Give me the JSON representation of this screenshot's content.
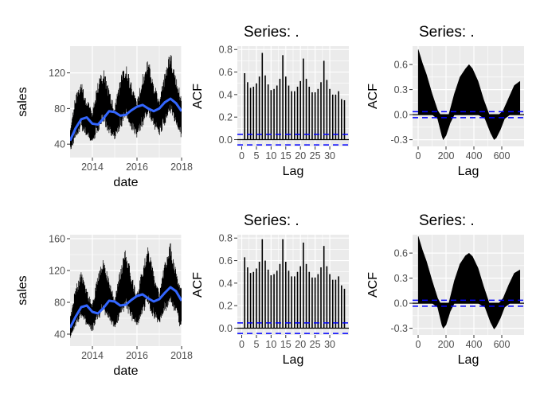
{
  "colors": {
    "panel_bg": "#EBEBEB",
    "grid_major": "#FFFFFF",
    "series_line": "#000000",
    "smooth_line": "#3366FF",
    "ci_line": "#0000FF",
    "tick_text": "#4D4D4D"
  },
  "chart_data": [
    {
      "type": "line",
      "title": "",
      "xlabel": "date",
      "ylabel": "sales",
      "xlim": [
        2013.0,
        2018.0
      ],
      "ylim": [
        25,
        150
      ],
      "xticks": [
        2014,
        2016,
        2018
      ],
      "xtick_labels": [
        "2014",
        "2016",
        "2018"
      ],
      "yticks": [
        40,
        80,
        120
      ],
      "ytick_labels": [
        "40",
        "80",
        "120"
      ],
      "series": [
        {
          "kind": "daily",
          "x": [
            2013.0,
            2013.25,
            2013.5,
            2013.75,
            2014.0,
            2014.25,
            2014.5,
            2014.75,
            2015.0,
            2015.25,
            2015.5,
            2015.75,
            2016.0,
            2016.25,
            2016.5,
            2016.75,
            2017.0,
            2017.25,
            2017.5,
            2017.75,
            2018.0
          ],
          "low": [
            30,
            45,
            55,
            45,
            40,
            52,
            62,
            50,
            42,
            55,
            66,
            54,
            46,
            58,
            70,
            56,
            48,
            60,
            72,
            58,
            45
          ],
          "high": [
            60,
            95,
            110,
            90,
            78,
            110,
            125,
            100,
            82,
            115,
            130,
            108,
            88,
            118,
            137,
            110,
            90,
            120,
            145,
            115,
            95
          ]
        },
        {
          "kind": "smooth",
          "x": [
            2013.0,
            2013.25,
            2013.5,
            2013.75,
            2014.0,
            2014.25,
            2014.5,
            2014.75,
            2015.0,
            2015.25,
            2015.5,
            2015.75,
            2016.0,
            2016.25,
            2016.5,
            2016.75,
            2017.0,
            2017.25,
            2017.5,
            2017.75,
            2018.0
          ],
          "y": [
            44,
            58,
            68,
            70,
            63,
            62,
            69,
            77,
            76,
            72,
            73,
            78,
            82,
            84,
            80,
            77,
            80,
            87,
            91,
            86,
            77
          ]
        }
      ]
    },
    {
      "type": "bar",
      "title": "Series: .",
      "xlabel": "Lag",
      "ylabel": "ACF",
      "xlim": [
        -1.5,
        36.5
      ],
      "ylim": [
        -0.06,
        0.83
      ],
      "xticks": [
        0,
        5,
        10,
        15,
        20,
        25,
        30
      ],
      "xtick_labels": [
        "0",
        "5",
        "10",
        "15",
        "20",
        "25",
        "30"
      ],
      "yticks": [
        0.0,
        0.2,
        0.4,
        0.6,
        0.8
      ],
      "ytick_labels": [
        "0.0",
        "0.2",
        "0.4",
        "0.6",
        "0.8"
      ],
      "x": [
        1,
        2,
        3,
        4,
        5,
        6,
        7,
        8,
        9,
        10,
        11,
        12,
        13,
        14,
        15,
        16,
        17,
        18,
        19,
        20,
        21,
        22,
        23,
        24,
        25,
        26,
        27,
        28,
        29,
        30,
        31,
        32,
        33,
        34,
        35
      ],
      "values": [
        0.59,
        0.51,
        0.46,
        0.47,
        0.5,
        0.56,
        0.77,
        0.57,
        0.49,
        0.44,
        0.45,
        0.48,
        0.54,
        0.75,
        0.56,
        0.48,
        0.43,
        0.43,
        0.47,
        0.52,
        0.72,
        0.54,
        0.47,
        0.42,
        0.42,
        0.45,
        0.51,
        0.7,
        0.53,
        0.45,
        0.4,
        0.4,
        0.43,
        0.36,
        0.35
      ],
      "ci": [
        0.047,
        -0.047
      ]
    },
    {
      "type": "bar",
      "title": "Series: .",
      "xlabel": "Lag",
      "ylabel": "ACF",
      "xlim": [
        -40,
        760
      ],
      "ylim": [
        -0.38,
        0.82
      ],
      "xticks": [
        0,
        200,
        400,
        600
      ],
      "xtick_labels": [
        "0",
        "200",
        "400",
        "600"
      ],
      "yticks": [
        -0.3,
        0.0,
        0.3,
        0.6
      ],
      "ytick_labels": [
        "-0.3",
        "0.0",
        "0.3",
        "0.6"
      ],
      "lag_max": 730,
      "envelope": {
        "upper_x": [
          1,
          30,
          60,
          100,
          140,
          160,
          190,
          220,
          260,
          300,
          340,
          365,
          390,
          430,
          470,
          510,
          545,
          580,
          610,
          650,
          690,
          730
        ],
        "upper_y": [
          0.78,
          0.62,
          0.48,
          0.25,
          0.05,
          0.0,
          0.0,
          0.0,
          0.25,
          0.45,
          0.55,
          0.6,
          0.55,
          0.4,
          0.18,
          0.0,
          0.0,
          0.0,
          0.05,
          0.2,
          0.35,
          0.4
        ],
        "lower_x": [
          1,
          30,
          60,
          100,
          140,
          170,
          180,
          200,
          230,
          260,
          300,
          365,
          430,
          480,
          520,
          545,
          560,
          590,
          620,
          660,
          700,
          730
        ],
        "lower_y": [
          0.0,
          0.0,
          0.0,
          0.0,
          -0.05,
          -0.25,
          -0.3,
          -0.25,
          -0.1,
          0.0,
          0.0,
          0.0,
          0.0,
          -0.05,
          -0.22,
          -0.3,
          -0.28,
          -0.18,
          -0.05,
          0.0,
          0.0,
          0.0
        ]
      },
      "ci": [
        0.036,
        -0.036
      ]
    },
    {
      "type": "line",
      "title": "",
      "xlabel": "date",
      "ylabel": "sales",
      "xlim": [
        2013.0,
        2018.0
      ],
      "ylim": [
        25,
        165
      ],
      "xticks": [
        2014,
        2016,
        2018
      ],
      "xtick_labels": [
        "2014",
        "2016",
        "2018"
      ],
      "yticks": [
        40,
        80,
        120,
        160
      ],
      "ytick_labels": [
        "40",
        "80",
        "120",
        "160"
      ],
      "series": [
        {
          "kind": "daily",
          "x": [
            2013.0,
            2013.25,
            2013.5,
            2013.75,
            2014.0,
            2014.25,
            2014.5,
            2014.75,
            2015.0,
            2015.25,
            2015.5,
            2015.75,
            2016.0,
            2016.25,
            2016.5,
            2016.75,
            2017.0,
            2017.25,
            2017.5,
            2017.75,
            2018.0
          ],
          "low": [
            32,
            48,
            58,
            48,
            42,
            55,
            65,
            52,
            44,
            58,
            70,
            56,
            48,
            62,
            74,
            58,
            50,
            64,
            76,
            60,
            42
          ],
          "high": [
            62,
            100,
            118,
            95,
            80,
            115,
            135,
            108,
            85,
            122,
            148,
            115,
            90,
            125,
            150,
            118,
            95,
            130,
            155,
            120,
            100
          ]
        },
        {
          "kind": "smooth",
          "x": [
            2013.0,
            2013.25,
            2013.5,
            2013.75,
            2014.0,
            2014.25,
            2014.5,
            2014.75,
            2015.0,
            2015.25,
            2015.5,
            2015.75,
            2016.0,
            2016.25,
            2016.5,
            2016.75,
            2017.0,
            2017.25,
            2017.5,
            2017.75,
            2018.0
          ],
          "y": [
            48,
            62,
            74,
            76,
            68,
            66,
            73,
            82,
            81,
            76,
            77,
            83,
            88,
            90,
            85,
            81,
            84,
            92,
            99,
            94,
            82
          ]
        }
      ]
    },
    {
      "type": "bar",
      "title": "Series: .",
      "xlabel": "Lag",
      "ylabel": "ACF",
      "xlim": [
        -1.5,
        36.5
      ],
      "ylim": [
        -0.06,
        0.83
      ],
      "xticks": [
        0,
        5,
        10,
        15,
        20,
        25,
        30
      ],
      "xtick_labels": [
        "0",
        "5",
        "10",
        "15",
        "20",
        "25",
        "30"
      ],
      "yticks": [
        0.0,
        0.2,
        0.4,
        0.6,
        0.8
      ],
      "ytick_labels": [
        "0.0",
        "0.2",
        "0.4",
        "0.6",
        "0.8"
      ],
      "x": [
        1,
        2,
        3,
        4,
        5,
        6,
        7,
        8,
        9,
        10,
        11,
        12,
        13,
        14,
        15,
        16,
        17,
        18,
        19,
        20,
        21,
        22,
        23,
        24,
        25,
        26,
        27,
        28,
        29,
        30,
        31,
        32,
        33,
        34,
        35
      ],
      "values": [
        0.63,
        0.54,
        0.49,
        0.5,
        0.53,
        0.59,
        0.79,
        0.6,
        0.52,
        0.47,
        0.48,
        0.51,
        0.57,
        0.79,
        0.59,
        0.51,
        0.46,
        0.46,
        0.5,
        0.55,
        0.76,
        0.57,
        0.5,
        0.45,
        0.45,
        0.48,
        0.54,
        0.73,
        0.55,
        0.48,
        0.43,
        0.43,
        0.46,
        0.38,
        0.35
      ],
      "ci": [
        0.047,
        -0.047
      ]
    },
    {
      "type": "bar",
      "title": "Series: .",
      "xlabel": "Lag",
      "ylabel": "ACF",
      "xlim": [
        -40,
        760
      ],
      "ylim": [
        -0.38,
        0.82
      ],
      "xticks": [
        0,
        200,
        400,
        600
      ],
      "xtick_labels": [
        "0",
        "200",
        "400",
        "600"
      ],
      "yticks": [
        -0.3,
        0.0,
        0.3,
        0.6
      ],
      "ytick_labels": [
        "-0.3",
        "0.0",
        "0.3",
        "0.6"
      ],
      "lag_max": 730,
      "envelope": {
        "upper_x": [
          1,
          30,
          60,
          100,
          140,
          160,
          190,
          220,
          260,
          300,
          340,
          365,
          390,
          430,
          470,
          510,
          545,
          580,
          610,
          650,
          690,
          730
        ],
        "upper_y": [
          0.8,
          0.64,
          0.5,
          0.27,
          0.06,
          0.0,
          0.0,
          0.0,
          0.27,
          0.47,
          0.57,
          0.6,
          0.56,
          0.42,
          0.2,
          0.0,
          0.0,
          0.0,
          0.06,
          0.22,
          0.36,
          0.4
        ],
        "lower_x": [
          1,
          30,
          60,
          100,
          140,
          170,
          180,
          200,
          230,
          260,
          300,
          365,
          430,
          480,
          520,
          545,
          560,
          590,
          620,
          660,
          700,
          730
        ],
        "lower_y": [
          0.0,
          0.0,
          0.0,
          0.0,
          -0.05,
          -0.26,
          -0.3,
          -0.26,
          -0.1,
          0.0,
          0.0,
          0.0,
          0.0,
          -0.05,
          -0.23,
          -0.31,
          -0.28,
          -0.18,
          -0.05,
          0.0,
          0.0,
          0.0
        ]
      },
      "ci": [
        0.036,
        -0.036
      ]
    }
  ]
}
